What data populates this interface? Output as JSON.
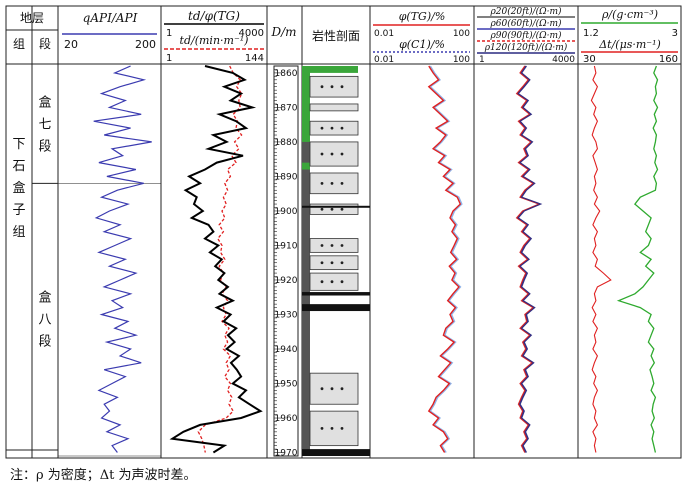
{
  "chart_data": {
    "type": "well-log",
    "depth_axis": {
      "label": "D/m",
      "range": [
        1858,
        1971
      ],
      "ticks": [
        1860,
        1870,
        1880,
        1890,
        1900,
        1910,
        1920,
        1930,
        1940,
        1950,
        1960,
        1970
      ]
    },
    "stratigraphy": {
      "header": "地层",
      "group_header": "组",
      "member_header": "段",
      "group": "下石盒子组",
      "members": [
        {
          "name": "盒七段",
          "from": 1858,
          "to": 1892
        },
        {
          "name": "盒八段",
          "from": 1892,
          "to": 1971
        }
      ]
    },
    "tracks": {
      "gr": {
        "curve": {
          "name": "qAPI/API",
          "range": [
            20,
            200
          ],
          "color": "#3b3bb0",
          "depth": [
            1858,
            1860,
            1862,
            1864,
            1866,
            1868,
            1870,
            1872,
            1874,
            1876,
            1878,
            1880,
            1882,
            1884,
            1886,
            1888,
            1890,
            1892,
            1894,
            1896,
            1898,
            1900,
            1902,
            1904,
            1906,
            1908,
            1910,
            1912,
            1914,
            1916,
            1918,
            1920,
            1922,
            1924,
            1926,
            1928,
            1930,
            1932,
            1934,
            1936,
            1938,
            1940,
            1942,
            1944,
            1946,
            1948,
            1950,
            1952,
            1954,
            1956,
            1958,
            1960,
            1962,
            1964,
            1966,
            1968,
            1970
          ],
          "values": [
            150,
            120,
            175,
            130,
            95,
            140,
            110,
            170,
            80,
            150,
            100,
            190,
            115,
            135,
            90,
            160,
            105,
            175,
            125,
            95,
            145,
            110,
            85,
            130,
            100,
            150,
            120,
            90,
            140,
            110,
            160,
            130,
            100,
            150,
            115,
            135,
            95,
            145,
            120,
            160,
            105,
            150,
            130,
            170,
            100,
            140,
            115,
            90,
            125,
            100,
            110,
            95,
            130,
            105,
            145,
            115,
            125
          ]
        }
      },
      "gas": {
        "curve1": {
          "name": "td/φ(TG)",
          "range": [
            1,
            4000
          ],
          "color": "#000000",
          "depth": [
            1858,
            1860,
            1862,
            1864,
            1866,
            1868,
            1870,
            1872,
            1874,
            1876,
            1878,
            1880,
            1882,
            1884,
            1886,
            1888,
            1890,
            1892,
            1894,
            1896,
            1898,
            1900,
            1902,
            1904,
            1906,
            1908,
            1910,
            1912,
            1914,
            1916,
            1918,
            1920,
            1922,
            1924,
            1926,
            1928,
            1930,
            1932,
            1934,
            1936,
            1938,
            1940,
            1942,
            1944,
            1946,
            1948,
            1950,
            1952,
            1954,
            1956,
            1958,
            1960,
            1962,
            1964,
            1966,
            1968,
            1970
          ],
          "values": [
            30,
            300,
            800,
            150,
            600,
            250,
            1500,
            100,
            400,
            900,
            60,
            180,
            40,
            700,
            80,
            30,
            8,
            20,
            6,
            15,
            12,
            25,
            10,
            40,
            60,
            30,
            90,
            45,
            120,
            70,
            150,
            90,
            200,
            100,
            300,
            80,
            250,
            140,
            400,
            200,
            350,
            180,
            500,
            260,
            420,
            600,
            300,
            900,
            500,
            1200,
            3000,
            600,
            20,
            5,
            2,
            150,
            60
          ]
        },
        "curve2": {
          "name": "td/(min·m⁻¹)",
          "range": [
            1,
            144
          ],
          "color": "#e02020",
          "depth": [
            1858,
            1860,
            1862,
            1864,
            1866,
            1868,
            1870,
            1872,
            1874,
            1876,
            1878,
            1880,
            1882,
            1884,
            1886,
            1888,
            1890,
            1892,
            1894,
            1896,
            1898,
            1900,
            1902,
            1904,
            1906,
            1908,
            1910,
            1912,
            1914,
            1916,
            1918,
            1920,
            1922,
            1924,
            1926,
            1928,
            1930,
            1932,
            1934,
            1936,
            1938,
            1940,
            1942,
            1944,
            1946,
            1948,
            1950,
            1952,
            1954,
            1956,
            1958,
            1960,
            1962,
            1964,
            1966,
            1968,
            1970
          ],
          "values": [
            95,
            100,
            110,
            105,
            112,
            108,
            110,
            100,
            106,
            104,
            112,
            102,
            108,
            98,
            104,
            92,
            96,
            88,
            92,
            86,
            90,
            84,
            88,
            80,
            86,
            78,
            84,
            82,
            88,
            80,
            86,
            82,
            90,
            84,
            92,
            86,
            90,
            84,
            94,
            88,
            92,
            86,
            96,
            90,
            94,
            88,
            96,
            92,
            98,
            94,
            100,
            90,
            60,
            50,
            55,
            58,
            60
          ]
        }
      },
      "depth": {
        "label": "D/m"
      },
      "lithology": {
        "header": "岩性剖面",
        "sandstone": [
          [
            1861,
            1867
          ],
          [
            1869,
            1871
          ],
          [
            1874,
            1878
          ],
          [
            1880,
            1887
          ],
          [
            1889,
            1895
          ],
          [
            1898,
            1901
          ],
          [
            1908,
            1912
          ],
          [
            1913,
            1917
          ],
          [
            1918,
            1923
          ],
          [
            1947,
            1956
          ],
          [
            1958,
            1968
          ]
        ],
        "coal": [
          [
            1898.5,
            1899
          ],
          [
            1923.5,
            1924.5
          ],
          [
            1927,
            1929
          ],
          [
            1969,
            1971
          ]
        ]
      },
      "porosity": {
        "curve1": {
          "name": "φ(TG)/%",
          "range": [
            0.01,
            100
          ],
          "color": "#e02020",
          "depth": [
            1858,
            1860,
            1862,
            1864,
            1866,
            1868,
            1870,
            1872,
            1874,
            1876,
            1878,
            1880,
            1882,
            1884,
            1886,
            1888,
            1890,
            1892,
            1894,
            1896,
            1898,
            1900,
            1902,
            1904,
            1906,
            1908,
            1910,
            1912,
            1914,
            1916,
            1918,
            1920,
            1922,
            1924,
            1926,
            1928,
            1930,
            1932,
            1934,
            1936,
            1938,
            1940,
            1942,
            1944,
            1946,
            1948,
            1950,
            1952,
            1954,
            1956,
            1958,
            1960,
            1962,
            1964,
            1966,
            1968,
            1970
          ],
          "values": [
            2,
            3,
            5,
            2,
            4,
            8,
            3,
            6,
            12,
            4,
            10,
            6,
            3,
            9,
            5,
            15,
            8,
            20,
            10,
            30,
            40,
            20,
            15,
            25,
            18,
            30,
            22,
            16,
            28,
            14,
            24,
            18,
            35,
            20,
            12,
            25,
            15,
            20,
            10,
            8,
            22,
            12,
            6,
            16,
            9,
            5,
            14,
            8,
            4,
            3,
            2,
            5,
            3,
            8,
            12,
            6,
            9
          ]
        },
        "curve2": {
          "name": "φ(C₁)/%",
          "range": [
            0.01,
            100
          ],
          "color": "#3b3bb0"
        }
      },
      "resistivity": {
        "range": [
          1,
          4000
        ],
        "curves": [
          {
            "name": "ρ20(20ft)/(Ω·m)",
            "color": "#000000"
          },
          {
            "name": "ρ60(60ft)/(Ω·m)",
            "color": "#3b3bb0"
          },
          {
            "name": "ρ90(90ft)/(Ω·m)",
            "color": "#e02020"
          },
          {
            "name": "ρ120(120ft)/(Ω·m)",
            "color": "#2a2a80"
          }
        ],
        "depth": [
          1858,
          1860,
          1862,
          1864,
          1866,
          1868,
          1870,
          1872,
          1874,
          1876,
          1878,
          1880,
          1882,
          1884,
          1886,
          1888,
          1890,
          1892,
          1894,
          1896,
          1898,
          1900,
          1902,
          1904,
          1906,
          1908,
          1910,
          1912,
          1914,
          1916,
          1918,
          1920,
          1922,
          1924,
          1926,
          1928,
          1930,
          1932,
          1934,
          1936,
          1938,
          1940,
          1942,
          1944,
          1946,
          1948,
          1950,
          1952,
          1954,
          1956,
          1958,
          1960,
          1962,
          1964,
          1966,
          1968,
          1970
        ],
        "values": [
          60,
          40,
          80,
          50,
          30,
          70,
          45,
          90,
          35,
          60,
          40,
          100,
          55,
          70,
          35,
          80,
          45,
          120,
          60,
          40,
          200,
          50,
          30,
          70,
          45,
          90,
          55,
          40,
          75,
          35,
          65,
          50,
          40,
          80,
          45,
          120,
          60,
          70,
          40,
          90,
          50,
          65,
          45,
          110,
          55,
          70,
          40,
          60,
          45,
          35,
          50,
          40,
          80,
          55,
          70,
          45,
          60
        ]
      },
      "density_sonic": {
        "curve1": {
          "name": "ρ/(g·cm⁻³)",
          "range": [
            1.2,
            3
          ],
          "color": "#2faa2f",
          "depth": [
            1858,
            1860,
            1862,
            1864,
            1866,
            1868,
            1870,
            1872,
            1874,
            1876,
            1878,
            1880,
            1882,
            1884,
            1886,
            1888,
            1890,
            1892,
            1894,
            1896,
            1898,
            1900,
            1902,
            1904,
            1906,
            1908,
            1910,
            1912,
            1914,
            1916,
            1918,
            1920,
            1922,
            1924,
            1926,
            1928,
            1930,
            1932,
            1934,
            1936,
            1938,
            1940,
            1942,
            1944,
            1946,
            1948,
            1950,
            1952,
            1954,
            1956,
            1958,
            1960,
            1962,
            1964,
            1966,
            1968,
            1970
          ],
          "values": [
            2.6,
            2.55,
            2.62,
            2.58,
            2.6,
            2.55,
            2.62,
            2.56,
            2.6,
            2.54,
            2.6,
            2.58,
            2.55,
            2.6,
            2.57,
            2.62,
            2.55,
            2.6,
            2.58,
            2.3,
            2.2,
            2.35,
            2.5,
            2.45,
            2.4,
            2.5,
            2.45,
            2.3,
            2.5,
            2.4,
            2.55,
            2.45,
            2.35,
            2.2,
            1.9,
            2.3,
            2.5,
            2.45,
            2.55,
            2.5,
            2.45,
            2.55,
            2.5,
            2.56,
            2.48,
            2.52,
            2.55,
            2.5,
            2.58,
            2.54,
            2.52,
            2.56,
            2.5,
            2.55,
            2.52,
            2.55,
            2.58
          ]
        },
        "curve2": {
          "name": "Δt/(μs·m⁻¹)",
          "range": [
            30,
            160
          ],
          "color": "#e02020",
          "depth": [
            1858,
            1860,
            1862,
            1864,
            1866,
            1868,
            1870,
            1872,
            1874,
            1876,
            1878,
            1880,
            1882,
            1884,
            1886,
            1888,
            1890,
            1892,
            1894,
            1896,
            1898,
            1900,
            1902,
            1904,
            1906,
            1908,
            1910,
            1912,
            1914,
            1916,
            1918,
            1920,
            1922,
            1924,
            1926,
            1928,
            1930,
            1932,
            1934,
            1936,
            1938,
            1940,
            1942,
            1944,
            1946,
            1948,
            1950,
            1952,
            1954,
            1956,
            1958,
            1960,
            1962,
            1964,
            1966,
            1968,
            1970
          ],
          "values": [
            48,
            50,
            46,
            52,
            48,
            44,
            50,
            47,
            52,
            48,
            45,
            50,
            52,
            46,
            49,
            52,
            48,
            50,
            47,
            52,
            48,
            55,
            50,
            46,
            52,
            48,
            50,
            46,
            52,
            49,
            60,
            70,
            52,
            48,
            50,
            45,
            50,
            46,
            52,
            48,
            50,
            46,
            52,
            48,
            45,
            50,
            47,
            52,
            48,
            46,
            50,
            48,
            52,
            46,
            50,
            48,
            50
          ]
        }
      }
    },
    "labels": {
      "gr_title": "qAPI/API",
      "gr_min": "20",
      "gr_max": "200",
      "gas_title": "td/φ(TG)",
      "gas_min": "1",
      "gas_max": "4000",
      "gas_sub": "td/(min·m⁻¹)",
      "gas_sub_min": "1",
      "gas_sub_max": "144",
      "depth_title": "D/m",
      "lith_title": "岩性剖面",
      "por_title1": "φ(TG)/%",
      "por_min1": "0.01",
      "por_max1": "100",
      "por_title2": "φ(C1)/%",
      "por_min2": "0.01",
      "por_max2": "100",
      "res_title1": "ρ20(20ft)/(Ω·m)",
      "res_title2": "ρ60(60ft)/(Ω·m)",
      "res_title3": "ρ90(90ft)/(Ω·m)",
      "res_title4": "ρ120(120ft)/(Ω·m)",
      "res_min": "1",
      "res_max": "4000",
      "den_title": "ρ/(g·cm⁻³)",
      "den_min": "1.2",
      "den_max": "3",
      "dt_title": "Δt/(μs·m⁻¹)",
      "dt_min": "30",
      "dt_max": "160"
    }
  },
  "note": "注：ρ 为密度；Δt 为声波时差。"
}
